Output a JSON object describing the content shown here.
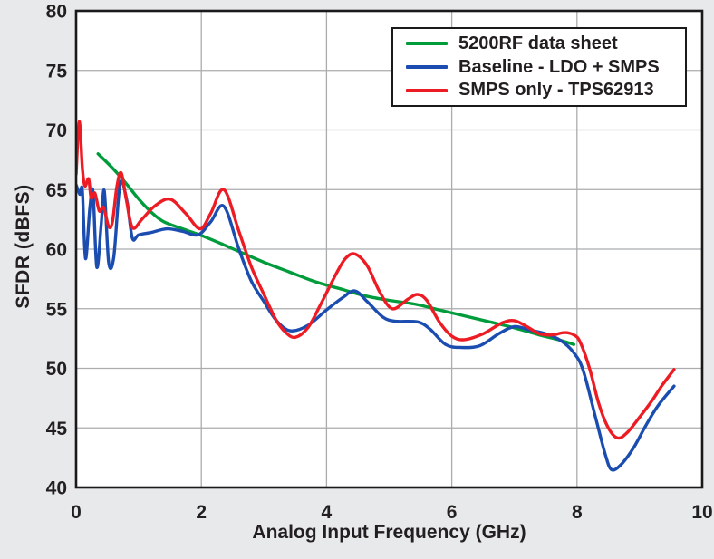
{
  "colors": {
    "background": "#E8E9EB",
    "plot_background": "#FFFFFF",
    "grid": "#ABACAE",
    "border": "#1A1A1A",
    "text": "#231F20"
  },
  "chart_data": {
    "type": "line",
    "title": "",
    "xlabel": "Analog Input Frequency (GHz)",
    "ylabel": "SFDR (dBFS)",
    "xlim": [
      0,
      10
    ],
    "ylim": [
      40,
      80
    ],
    "xticks": [
      0,
      2,
      4,
      6,
      8,
      10
    ],
    "yticks": [
      40,
      45,
      50,
      55,
      60,
      65,
      70,
      75,
      80
    ],
    "grid": "on",
    "legend_position": "top-right",
    "series": [
      {
        "name": "5200RF data sheet",
        "color": "#009B3B",
        "points": [
          [
            0.35,
            68.0
          ],
          [
            0.6,
            66.7
          ],
          [
            0.8,
            65.5
          ],
          [
            1.0,
            64.2
          ],
          [
            1.2,
            63.1
          ],
          [
            1.4,
            62.3
          ],
          [
            1.7,
            61.7
          ],
          [
            2.0,
            61.15
          ],
          [
            2.3,
            60.5
          ],
          [
            2.6,
            59.8
          ],
          [
            3.0,
            58.9
          ],
          [
            3.4,
            58.1
          ],
          [
            3.8,
            57.3
          ],
          [
            4.2,
            56.7
          ],
          [
            4.6,
            56.1
          ],
          [
            5.0,
            55.7
          ],
          [
            5.4,
            55.4
          ],
          [
            5.8,
            54.9
          ],
          [
            6.2,
            54.4
          ],
          [
            6.6,
            53.9
          ],
          [
            7.0,
            53.4
          ],
          [
            7.4,
            52.8
          ],
          [
            7.7,
            52.4
          ],
          [
            7.95,
            52.0
          ]
        ]
      },
      {
        "name": "Baseline - LDO + SMPS",
        "color": "#1B4DB0",
        "points": [
          [
            0.0,
            65.4
          ],
          [
            0.06,
            64.6
          ],
          [
            0.1,
            64.9
          ],
          [
            0.15,
            59.2
          ],
          [
            0.22,
            63.5
          ],
          [
            0.27,
            64.8
          ],
          [
            0.33,
            58.5
          ],
          [
            0.4,
            62.0
          ],
          [
            0.45,
            64.9
          ],
          [
            0.52,
            58.9
          ],
          [
            0.6,
            59.3
          ],
          [
            0.68,
            64.5
          ],
          [
            0.73,
            65.7
          ],
          [
            0.82,
            63.8
          ],
          [
            0.9,
            60.9
          ],
          [
            1.0,
            61.2
          ],
          [
            1.2,
            61.4
          ],
          [
            1.45,
            61.7
          ],
          [
            1.7,
            61.5
          ],
          [
            1.95,
            61.2
          ],
          [
            2.15,
            62.3
          ],
          [
            2.36,
            63.6
          ],
          [
            2.6,
            60.0
          ],
          [
            2.8,
            57.3
          ],
          [
            3.0,
            55.6
          ],
          [
            3.2,
            54.0
          ],
          [
            3.42,
            53.15
          ],
          [
            3.7,
            53.6
          ],
          [
            4.0,
            54.9
          ],
          [
            4.25,
            55.9
          ],
          [
            4.45,
            56.5
          ],
          [
            4.65,
            55.6
          ],
          [
            4.9,
            54.3
          ],
          [
            5.1,
            53.95
          ],
          [
            5.45,
            53.9
          ],
          [
            5.65,
            53.3
          ],
          [
            5.9,
            52.0
          ],
          [
            6.15,
            51.75
          ],
          [
            6.45,
            51.9
          ],
          [
            6.75,
            52.9
          ],
          [
            7.0,
            53.5
          ],
          [
            7.25,
            53.2
          ],
          [
            7.5,
            52.9
          ],
          [
            7.75,
            52.3
          ],
          [
            7.95,
            51.3
          ],
          [
            8.1,
            49.8
          ],
          [
            8.3,
            45.8
          ],
          [
            8.45,
            42.8
          ],
          [
            8.55,
            41.5
          ],
          [
            8.7,
            41.9
          ],
          [
            8.9,
            43.3
          ],
          [
            9.1,
            45.2
          ],
          [
            9.3,
            46.9
          ],
          [
            9.55,
            48.5
          ]
        ]
      },
      {
        "name": "SMPS only - TPS62913",
        "color": "#ED1C24",
        "points": [
          [
            0.0,
            66.3
          ],
          [
            0.05,
            70.7
          ],
          [
            0.1,
            66.8
          ],
          [
            0.14,
            65.3
          ],
          [
            0.2,
            65.9
          ],
          [
            0.24,
            64.3
          ],
          [
            0.3,
            64.7
          ],
          [
            0.37,
            63.2
          ],
          [
            0.44,
            63.5
          ],
          [
            0.52,
            61.9
          ],
          [
            0.58,
            62.3
          ],
          [
            0.65,
            65.2
          ],
          [
            0.72,
            66.4
          ],
          [
            0.8,
            64.2
          ],
          [
            0.9,
            61.8
          ],
          [
            1.05,
            62.5
          ],
          [
            1.25,
            63.6
          ],
          [
            1.5,
            64.2
          ],
          [
            1.75,
            63.0
          ],
          [
            1.98,
            61.7
          ],
          [
            2.15,
            63.0
          ],
          [
            2.36,
            65.0
          ],
          [
            2.6,
            61.5
          ],
          [
            2.8,
            58.5
          ],
          [
            3.0,
            56.2
          ],
          [
            3.2,
            54.0
          ],
          [
            3.35,
            53.0
          ],
          [
            3.5,
            52.6
          ],
          [
            3.7,
            53.4
          ],
          [
            3.9,
            55.3
          ],
          [
            4.15,
            57.9
          ],
          [
            4.3,
            59.2
          ],
          [
            4.45,
            59.6
          ],
          [
            4.65,
            58.6
          ],
          [
            4.85,
            56.4
          ],
          [
            5.05,
            55.0
          ],
          [
            5.3,
            55.8
          ],
          [
            5.45,
            56.2
          ],
          [
            5.6,
            55.7
          ],
          [
            5.8,
            53.9
          ],
          [
            6.0,
            52.7
          ],
          [
            6.2,
            52.4
          ],
          [
            6.5,
            52.9
          ],
          [
            6.8,
            53.8
          ],
          [
            7.0,
            54.0
          ],
          [
            7.2,
            53.5
          ],
          [
            7.4,
            52.9
          ],
          [
            7.6,
            52.8
          ],
          [
            7.8,
            53.0
          ],
          [
            7.95,
            52.8
          ],
          [
            8.05,
            52.2
          ],
          [
            8.2,
            50.0
          ],
          [
            8.35,
            47.0
          ],
          [
            8.5,
            45.0
          ],
          [
            8.65,
            44.15
          ],
          [
            8.8,
            44.6
          ],
          [
            9.0,
            45.9
          ],
          [
            9.2,
            47.3
          ],
          [
            9.35,
            48.5
          ],
          [
            9.55,
            49.9
          ]
        ]
      }
    ]
  }
}
